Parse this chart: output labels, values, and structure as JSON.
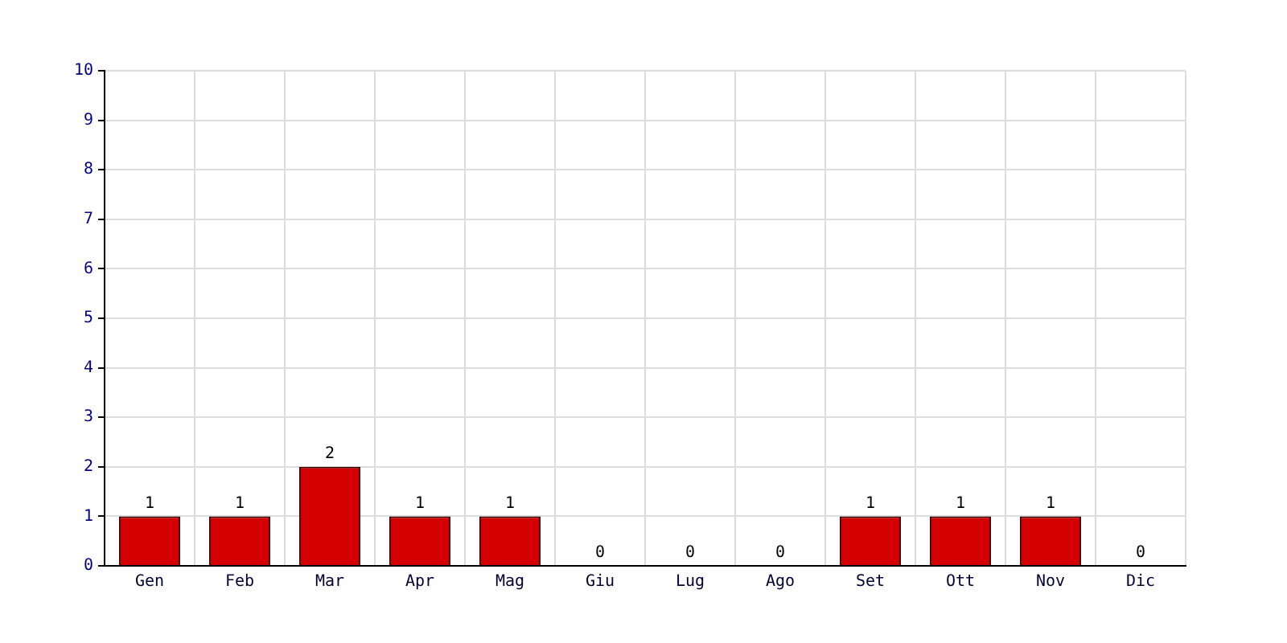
{
  "chart_data": {
    "type": "bar",
    "categories": [
      "Gen",
      "Feb",
      "Mar",
      "Apr",
      "Mag",
      "Giu",
      "Lug",
      "Ago",
      "Set",
      "Ott",
      "Nov",
      "Dic"
    ],
    "values": [
      1,
      1,
      2,
      1,
      1,
      0,
      0,
      0,
      1,
      1,
      1,
      0
    ],
    "color": "#d40000",
    "ylim": [
      0,
      10
    ],
    "yticks": [
      0,
      1,
      2,
      3,
      4,
      5,
      6,
      7,
      8,
      9,
      10
    ],
    "grid": true,
    "data_labels": true
  }
}
